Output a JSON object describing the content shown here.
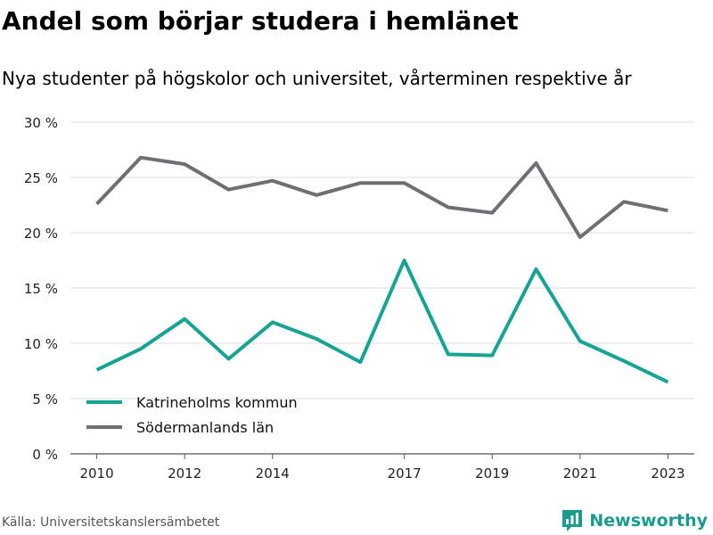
{
  "title": "Andel som börjar studera i hemlänet",
  "subtitle": "Nya studenter på högskolor och universitet, vårterminen respektive år",
  "source": "Källa: Universitetskanslersämbetet",
  "brand": {
    "name": "Newsworthy",
    "logo_icon": "newsworthy-logo-icon",
    "color": "#1a9b8e"
  },
  "chart_data": {
    "type": "line",
    "title": "",
    "xlabel": "",
    "ylabel": "",
    "x": [
      2010,
      2011,
      2012,
      2013,
      2014,
      2015,
      2016,
      2017,
      2018,
      2019,
      2020,
      2021,
      2022,
      2023
    ],
    "x_tick_labels": [
      "2010",
      "2012",
      "2014",
      "2017",
      "2019",
      "2021",
      "2023"
    ],
    "y_ticks": [
      0,
      5,
      10,
      15,
      20,
      25,
      30
    ],
    "y_tick_labels": [
      "0 %",
      "5 %",
      "10 %",
      "15 %",
      "20 %",
      "25 %",
      "30 %"
    ],
    "ylim": [
      0,
      30
    ],
    "xlim": [
      2009.4,
      2023.6
    ],
    "grid": true,
    "legend_position": "bottom-left",
    "series": [
      {
        "name": "Katrineholms kommun",
        "color": "#16a394",
        "values": [
          7.6,
          9.5,
          12.2,
          8.6,
          11.9,
          10.4,
          8.3,
          17.5,
          9.0,
          8.9,
          16.7,
          10.2,
          8.4,
          6.5
        ]
      },
      {
        "name": "Södermanlands län",
        "color": "#6e6e75",
        "values": [
          22.6,
          26.8,
          26.2,
          23.9,
          24.7,
          23.4,
          24.5,
          24.5,
          22.3,
          21.8,
          26.3,
          19.6,
          22.8,
          22.0
        ]
      }
    ]
  }
}
